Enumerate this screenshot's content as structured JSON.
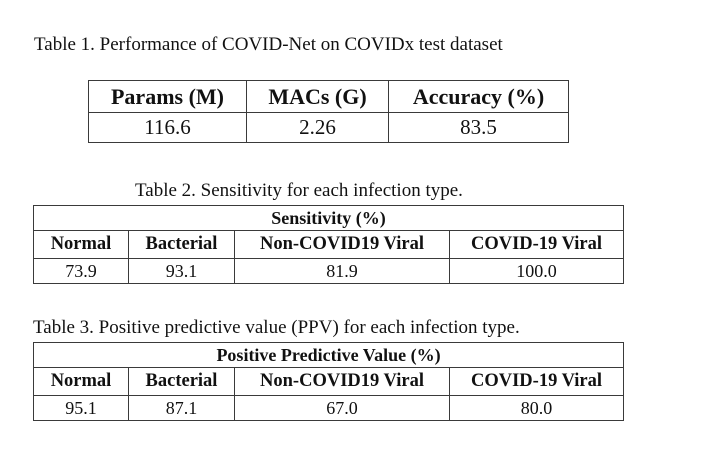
{
  "table1": {
    "caption": "Table 1. Performance of COVID-Net on COVIDx test dataset",
    "headers": [
      "Params (M)",
      "MACs (G)",
      "Accuracy (%)"
    ],
    "values": [
      "116.6",
      "2.26",
      "83.5"
    ]
  },
  "table2": {
    "caption": "Table 2. Sensitivity for each infection type.",
    "group_header": "Sensitivity (%)",
    "headers": [
      "Normal",
      "Bacterial",
      "Non-COVID19 Viral",
      "COVID-19 Viral"
    ],
    "values": [
      "73.9",
      "93.1",
      "81.9",
      "100.0"
    ]
  },
  "table3": {
    "caption": "Table 3. Positive predictive value (PPV) for each infection type.",
    "group_header": "Positive Predictive Value (%)",
    "headers": [
      "Normal",
      "Bacterial",
      "Non-COVID19 Viral",
      "COVID-19 Viral"
    ],
    "values": [
      "95.1",
      "87.1",
      "67.0",
      "80.0"
    ]
  }
}
